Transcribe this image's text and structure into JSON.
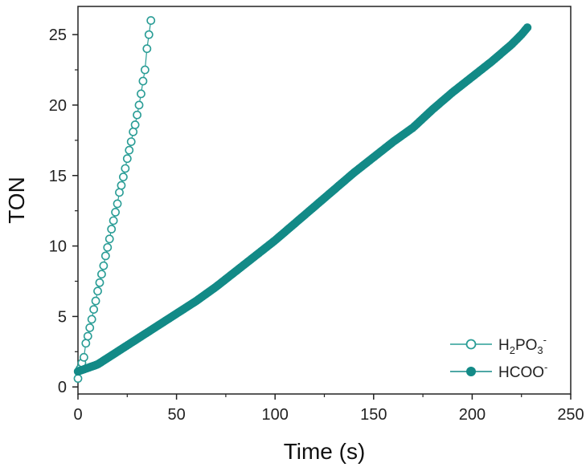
{
  "chart_data": {
    "type": "scatter",
    "xlabel": "Time (s)",
    "ylabel": "TON",
    "xlim": [
      0,
      250
    ],
    "ylim": [
      -0.5,
      27
    ],
    "xticks": [
      0,
      50,
      100,
      150,
      200,
      250
    ],
    "yticks": [
      0,
      5,
      10,
      15,
      20,
      25
    ],
    "grid": false,
    "legend_position": "bottom-right",
    "series": [
      {
        "name": "H2PO3-",
        "legend_parts": [
          {
            "t": "H",
            "s": "normal"
          },
          {
            "t": "2",
            "s": "sub"
          },
          {
            "t": "PO",
            "s": "normal"
          },
          {
            "t": "3",
            "s": "sub"
          },
          {
            "t": "-",
            "s": "sup"
          }
        ],
        "marker": "open-circle",
        "color": "#2a9d96",
        "x": [
          0,
          1,
          2,
          3,
          4,
          5,
          6,
          7,
          8,
          9,
          10,
          11,
          12,
          13,
          14,
          15,
          16,
          17,
          18,
          19,
          20,
          21,
          22,
          23,
          24,
          25,
          26,
          27,
          28,
          29,
          30,
          31,
          32,
          33,
          34,
          35,
          36,
          37
        ],
        "y": [
          0.6,
          1.3,
          1.7,
          2.1,
          3.1,
          3.6,
          4.2,
          4.8,
          5.5,
          6.1,
          6.8,
          7.4,
          8.0,
          8.6,
          9.3,
          9.9,
          10.5,
          11.2,
          11.8,
          12.4,
          13.0,
          13.8,
          14.3,
          14.9,
          15.5,
          16.2,
          16.8,
          17.4,
          18.1,
          18.6,
          19.3,
          20.0,
          20.8,
          21.7,
          22.5,
          24.0,
          25.0,
          26.0
        ]
      },
      {
        "name": "HCOO-",
        "legend_parts": [
          {
            "t": "HCOO",
            "s": "normal"
          },
          {
            "t": "-",
            "s": "sup"
          }
        ],
        "marker": "filled-circle",
        "color": "#138a87",
        "x": [
          0,
          10,
          20,
          30,
          40,
          50,
          60,
          70,
          80,
          90,
          100,
          110,
          120,
          130,
          140,
          150,
          160,
          170,
          180,
          190,
          200,
          210,
          220,
          225,
          228
        ],
        "y": [
          1.1,
          1.6,
          2.5,
          3.4,
          4.3,
          5.2,
          6.1,
          7.1,
          8.2,
          9.3,
          10.4,
          11.6,
          12.8,
          14.0,
          15.2,
          16.3,
          17.4,
          18.4,
          19.7,
          20.9,
          22.0,
          23.1,
          24.3,
          25.0,
          25.5
        ]
      }
    ]
  }
}
